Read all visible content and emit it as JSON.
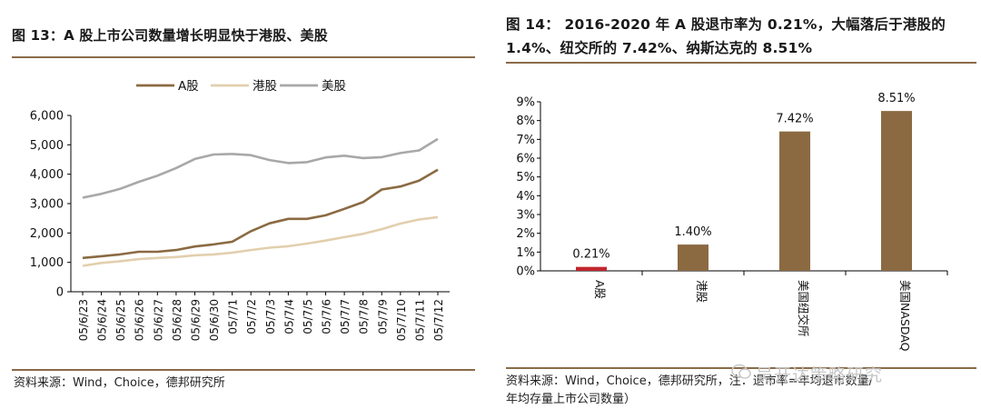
{
  "left_chart": {
    "title": "图 13：A 股上市公司数量增长明显快于港股、美股",
    "source": "资料来源：Wind，Choice，德邦研究所"
  },
  "right_chart": {
    "title": "图 14：  2016-2020 年 A 股退市率为 0.21%，大幅落后于港股的 1.4%、纽交所的 7.42%、纳斯达克的 8.51%",
    "source_line1": "资料来源：Wind，Choice，德邦研究所，注：退市率=年均退市数量/",
    "source_line2": "年均存量上市公司数量）"
  },
  "watermark": "吴开达策略研究",
  "colors": {
    "a_share": "#8b6a42",
    "hk": "#e2cfae",
    "us": "#a8a8a8",
    "bar": "#8b6a42",
    "bar_a": "#c0262e",
    "rule": "#8a6a48"
  },
  "chart_data": [
    {
      "type": "line",
      "title": "图 13：A 股上市公司数量增长明显快于港股、美股",
      "x": [
        "05/6/23",
        "05/6/24",
        "05/6/25",
        "05/6/26",
        "05/6/27",
        "05/6/28",
        "05/6/29",
        "05/6/30",
        "05/7/1",
        "05/7/2",
        "05/7/3",
        "05/7/4",
        "05/7/5",
        "05/7/6",
        "05/7/7",
        "05/7/8",
        "05/7/9",
        "05/7/10",
        "05/7/11",
        "05/7/12"
      ],
      "series": [
        {
          "name": "A股",
          "color": "#8b6a42",
          "values": [
            1150,
            1210,
            1270,
            1360,
            1360,
            1420,
            1540,
            1610,
            1700,
            2060,
            2330,
            2480,
            2480,
            2600,
            2820,
            3050,
            3480,
            3580,
            3780,
            4150
          ]
        },
        {
          "name": "港股",
          "color": "#e2cfae",
          "values": [
            880,
            980,
            1040,
            1110,
            1150,
            1180,
            1240,
            1270,
            1330,
            1420,
            1500,
            1550,
            1640,
            1740,
            1860,
            1970,
            2130,
            2320,
            2460,
            2540
          ]
        },
        {
          "name": "美股",
          "color": "#a8a8a8",
          "values": [
            3200,
            3330,
            3500,
            3740,
            3950,
            4210,
            4520,
            4670,
            4690,
            4650,
            4480,
            4380,
            4410,
            4570,
            4630,
            4550,
            4580,
            4720,
            4810,
            5200
          ]
        }
      ],
      "yticks": [
        "0",
        "1,000",
        "2,000",
        "3,000",
        "4,000",
        "5,000",
        "6,000"
      ],
      "ylim": [
        0,
        6000
      ],
      "legend": "top-center",
      "grid": false
    },
    {
      "type": "bar",
      "title": "图 14：2016-2020 年 A 股退市率",
      "categories": [
        "A股",
        "港股",
        "美国纽交所",
        "美国NASDAQ"
      ],
      "values": [
        0.21,
        1.4,
        7.42,
        8.51
      ],
      "labels": [
        "0.21%",
        "1.40%",
        "7.42%",
        "8.51%"
      ],
      "yticks": [
        "0%",
        "1%",
        "2%",
        "3%",
        "4%",
        "5%",
        "6%",
        "7%",
        "8%",
        "9%"
      ],
      "ylim": [
        0,
        9
      ],
      "unit": "%",
      "grid": false
    }
  ]
}
